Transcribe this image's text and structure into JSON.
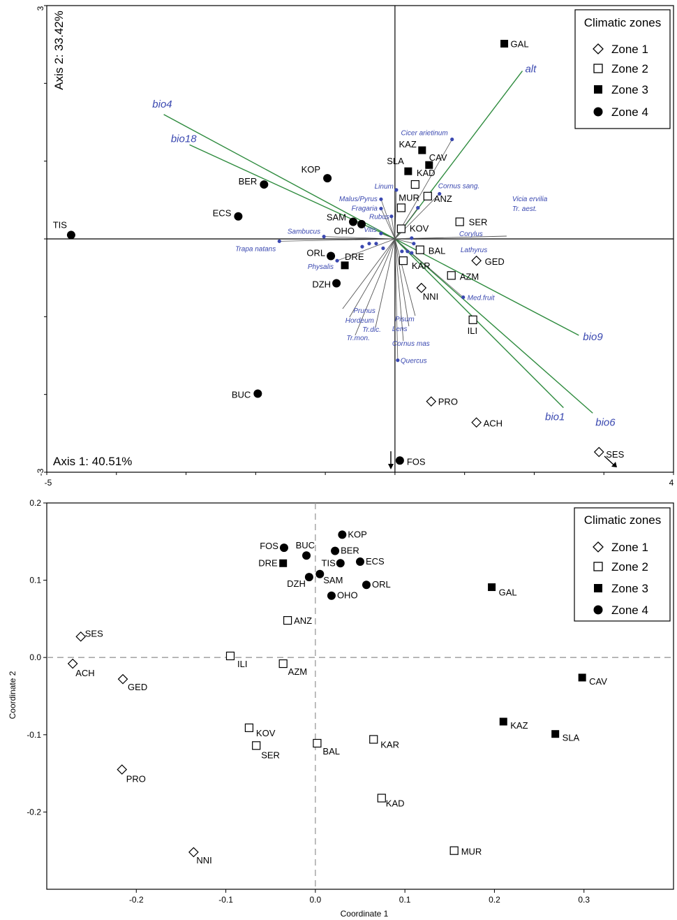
{
  "chart_data": [
    {
      "type": "scatter",
      "subtype": "ordination-biplot",
      "axis1_label": "Axis 1: 40.51%",
      "axis2_label": "Axis 2: 33.42%",
      "xlim": [
        -5,
        4
      ],
      "ylim": [
        -3,
        3
      ],
      "x_tick_labels": [
        "-5",
        "4"
      ],
      "y_tick_labels": [
        "3",
        "-3"
      ],
      "legend": {
        "title": "Climatic zones",
        "position": "top-right",
        "entries": [
          {
            "label": "Zone 1",
            "marker": "diamond-open"
          },
          {
            "label": "Zone 2",
            "marker": "square-open"
          },
          {
            "label": "Zone 3",
            "marker": "square-filled"
          },
          {
            "label": "Zone 4",
            "marker": "circle-filled"
          }
        ]
      },
      "sites": [
        {
          "label": "TIS",
          "zone": 4,
          "x": -4.65,
          "y": 0.05
        },
        {
          "label": "ECS",
          "zone": 4,
          "x": -2.25,
          "y": 0.29
        },
        {
          "label": "BER",
          "zone": 4,
          "x": -1.88,
          "y": 0.7
        },
        {
          "label": "KOP",
          "zone": 4,
          "x": -0.97,
          "y": 0.78
        },
        {
          "label": "SAM",
          "zone": 4,
          "x": -0.6,
          "y": 0.22
        },
        {
          "label": "OHO",
          "zone": 4,
          "x": -0.48,
          "y": 0.19
        },
        {
          "label": "ORL",
          "zone": 4,
          "x": -0.92,
          "y": -0.22
        },
        {
          "label": "DRE",
          "zone": 3,
          "x": -0.72,
          "y": -0.34
        },
        {
          "label": "DZH",
          "zone": 4,
          "x": -0.84,
          "y": -0.57
        },
        {
          "label": "BUC",
          "zone": 4,
          "x": -1.97,
          "y": -1.99
        },
        {
          "label": "FOS",
          "zone": 4,
          "x": 0.07,
          "y": -2.85
        },
        {
          "label": "GAL",
          "zone": 3,
          "x": 1.57,
          "y": 2.51
        },
        {
          "label": "KAZ",
          "zone": 3,
          "x": 0.39,
          "y": 1.14
        },
        {
          "label": "CAV",
          "zone": 3,
          "x": 0.49,
          "y": 0.95
        },
        {
          "label": "SLA",
          "zone": 3,
          "x": 0.19,
          "y": 0.87
        },
        {
          "label": "KAD",
          "zone": 2,
          "x": 0.29,
          "y": 0.7
        },
        {
          "label": "MUR",
          "zone": 2,
          "x": 0.09,
          "y": 0.4
        },
        {
          "label": "ANZ",
          "zone": 2,
          "x": 0.47,
          "y": 0.55
        },
        {
          "label": "KOV",
          "zone": 2,
          "x": 0.09,
          "y": 0.13
        },
        {
          "label": "SER",
          "zone": 2,
          "x": 0.93,
          "y": 0.22
        },
        {
          "label": "BAL",
          "zone": 2,
          "x": 0.36,
          "y": -0.14
        },
        {
          "label": "KAR",
          "zone": 2,
          "x": 0.12,
          "y": -0.28
        },
        {
          "label": "GED",
          "zone": 1,
          "x": 1.17,
          "y": -0.28
        },
        {
          "label": "AZM",
          "zone": 2,
          "x": 0.81,
          "y": -0.47
        },
        {
          "label": "NNI",
          "zone": 1,
          "x": 0.38,
          "y": -0.63
        },
        {
          "label": "ILI",
          "zone": 2,
          "x": 1.12,
          "y": -1.04
        },
        {
          "label": "PRO",
          "zone": 1,
          "x": 0.52,
          "y": -2.09
        },
        {
          "label": "ACH",
          "zone": 1,
          "x": 1.17,
          "y": -2.36
        },
        {
          "label": "SES",
          "zone": 1,
          "x": 2.93,
          "y": -2.74
        }
      ],
      "env_vectors": [
        {
          "label": "alt",
          "x": 1.83,
          "y": 2.16
        },
        {
          "label": "bio4",
          "x": -3.32,
          "y": 1.6
        },
        {
          "label": "bio18",
          "x": -2.95,
          "y": 1.21
        },
        {
          "label": "bio9",
          "x": 2.64,
          "y": -1.24
        },
        {
          "label": "bio1",
          "x": 2.42,
          "y": -2.17
        },
        {
          "label": "bio6",
          "x": 2.84,
          "y": -2.24
        }
      ],
      "species": [
        {
          "label": "Cicer arietinum",
          "x": 0.82,
          "y": 1.28
        },
        {
          "label": "Cornus sang.",
          "x": 0.64,
          "y": 0.58
        },
        {
          "label": "Vicia ervilia",
          "x": 0.33,
          "y": 0.4
        },
        {
          "label": "Tr. aest.",
          "x": 0.33,
          "y": 0.4
        },
        {
          "label": "Corylus",
          "x": 0.24,
          "y": 0.01
        },
        {
          "label": "Lathyrus",
          "x": 0.27,
          "y": -0.06
        },
        {
          "label": "Linum",
          "x": 0.02,
          "y": 0.63
        },
        {
          "label": "Malus/Pyrus",
          "x": -0.2,
          "y": 0.51
        },
        {
          "label": "Fragaria",
          "x": -0.2,
          "y": 0.39
        },
        {
          "label": "Rubus",
          "x": -0.05,
          "y": 0.29
        },
        {
          "label": "Sambucus",
          "x": -1.02,
          "y": 0.03
        },
        {
          "label": "Vitis",
          "x": -0.2,
          "y": 0.07
        },
        {
          "label": "Trapa natans",
          "x": -1.66,
          "y": -0.03
        },
        {
          "label": "Physalis",
          "x": -0.83,
          "y": -0.28
        },
        {
          "label": "Prunus",
          "x": -0.47,
          "y": -0.1
        },
        {
          "label": "Hordeum",
          "x": -0.37,
          "y": -0.06
        },
        {
          "label": "Tr.mon.",
          "x": -0.27,
          "y": -0.06
        },
        {
          "label": "Tr.dic.",
          "x": -0.17,
          "y": -0.12
        },
        {
          "label": "Pisum",
          "x": 0.24,
          "y": -0.18
        },
        {
          "label": "Lens",
          "x": 0.18,
          "y": -0.16
        },
        {
          "label": "Cornus mas",
          "x": 0.1,
          "y": -0.16
        },
        {
          "label": "Quercus",
          "x": 0.04,
          "y": -1.56
        },
        {
          "label": "Med.fruit",
          "x": 0.98,
          "y": -0.75
        }
      ],
      "species_lines_to": [
        "Prunus",
        "Hordeum",
        "Tr.mon.",
        "Tr.dic.",
        "Pisum",
        "Lens",
        "Cornus mas",
        "Vicia ervilia"
      ],
      "origin_axes": true
    },
    {
      "type": "scatter",
      "xlabel": "Coordinate 1",
      "ylabel": "Coordinate 2",
      "xlim": [
        -0.3,
        0.4
      ],
      "ylim": [
        -0.3,
        0.2
      ],
      "x_ticks": [
        -0.2,
        -0.1,
        0.0,
        0.1,
        0.2,
        0.3
      ],
      "x_tick_labels": [
        "-0.2",
        "-0.1",
        "0.0",
        "0.1",
        "0.2",
        "0.3"
      ],
      "y_ticks": [
        0.2,
        0.1,
        0.0,
        -0.1,
        -0.2
      ],
      "y_tick_labels": [
        "0.2",
        "0.1",
        "0.0",
        "-0.1",
        "-0.2"
      ],
      "zero_lines": "dashed",
      "legend": {
        "title": "Climatic zones",
        "position": "top-right",
        "entries": [
          {
            "label": "Zone 1",
            "marker": "diamond-open"
          },
          {
            "label": "Zone 2",
            "marker": "square-open"
          },
          {
            "label": "Zone 3",
            "marker": "square-filled"
          },
          {
            "label": "Zone 4",
            "marker": "circle-filled"
          }
        ]
      },
      "points": [
        {
          "label": "KOP",
          "zone": 4,
          "x": 0.03,
          "y": 0.159
        },
        {
          "label": "FOS",
          "zone": 4,
          "x": -0.035,
          "y": 0.142
        },
        {
          "label": "BUC",
          "zone": 4,
          "x": -0.01,
          "y": 0.132
        },
        {
          "label": "BER",
          "zone": 4,
          "x": 0.022,
          "y": 0.138
        },
        {
          "label": "DRE",
          "zone": 3,
          "x": -0.036,
          "y": 0.122
        },
        {
          "label": "TIS",
          "zone": 4,
          "x": 0.028,
          "y": 0.122
        },
        {
          "label": "ECS",
          "zone": 4,
          "x": 0.05,
          "y": 0.124
        },
        {
          "label": "SAM",
          "zone": 4,
          "x": 0.005,
          "y": 0.108
        },
        {
          "label": "DZH",
          "zone": 4,
          "x": -0.007,
          "y": 0.104
        },
        {
          "label": "ORL",
          "zone": 4,
          "x": 0.057,
          "y": 0.094
        },
        {
          "label": "OHO",
          "zone": 4,
          "x": 0.018,
          "y": 0.08
        },
        {
          "label": "GAL",
          "zone": 3,
          "x": 0.197,
          "y": 0.091
        },
        {
          "label": "ANZ",
          "zone": 2,
          "x": -0.031,
          "y": 0.048
        },
        {
          "label": "SES",
          "zone": 1,
          "x": -0.262,
          "y": 0.027
        },
        {
          "label": "ILI",
          "zone": 2,
          "x": -0.095,
          "y": 0.002
        },
        {
          "label": "ACH",
          "zone": 1,
          "x": -0.271,
          "y": -0.008
        },
        {
          "label": "AZM",
          "zone": 2,
          "x": -0.036,
          "y": -0.008
        },
        {
          "label": "GED",
          "zone": 1,
          "x": -0.215,
          "y": -0.028
        },
        {
          "label": "CAV",
          "zone": 3,
          "x": 0.298,
          "y": -0.026
        },
        {
          "label": "KAZ",
          "zone": 3,
          "x": 0.21,
          "y": -0.083
        },
        {
          "label": "SLA",
          "zone": 3,
          "x": 0.268,
          "y": -0.099
        },
        {
          "label": "KOV",
          "zone": 2,
          "x": -0.074,
          "y": -0.091
        },
        {
          "label": "SER",
          "zone": 2,
          "x": -0.066,
          "y": -0.114
        },
        {
          "label": "BAL",
          "zone": 2,
          "x": 0.002,
          "y": -0.111
        },
        {
          "label": "KAR",
          "zone": 2,
          "x": 0.065,
          "y": -0.106
        },
        {
          "label": "PRO",
          "zone": 1,
          "x": -0.216,
          "y": -0.145
        },
        {
          "label": "KAD",
          "zone": 2,
          "x": 0.074,
          "y": -0.182
        },
        {
          "label": "MUR",
          "zone": 2,
          "x": 0.155,
          "y": -0.25
        },
        {
          "label": "NNI",
          "zone": 1,
          "x": -0.136,
          "y": -0.252
        }
      ]
    }
  ],
  "colors": {
    "vector": "#2e8b3e",
    "vector_label": "#3a48b0",
    "species": "#3a48b0",
    "species_line": "#555555",
    "axis": "#000000",
    "dashed": "#999999"
  }
}
